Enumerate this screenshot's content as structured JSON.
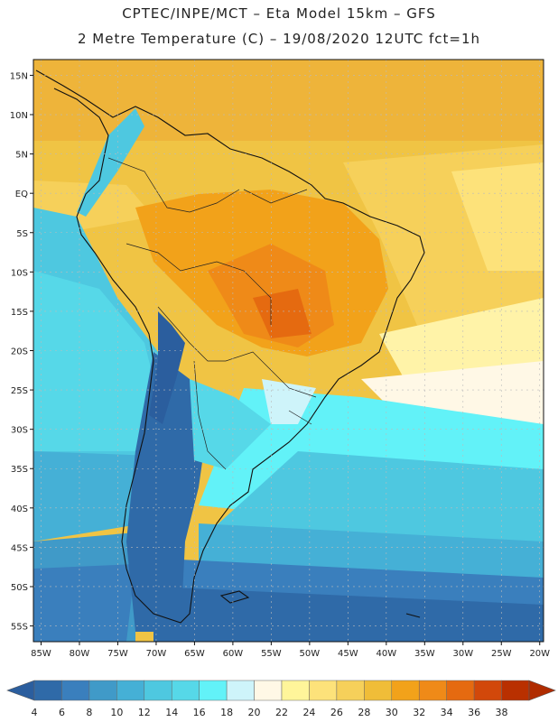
{
  "header": {
    "line1": "CPTEC/INPE/MCT –  Eta Model 15km – GFS",
    "line2": "2 Metre Temperature (C) – 19/08/2020 12UTC fct=1h"
  },
  "map": {
    "lon_labels": [
      "85W",
      "80W",
      "75W",
      "70W",
      "65W",
      "60W",
      "55W",
      "50W",
      "45W",
      "40W",
      "35W",
      "30W",
      "25W",
      "20W"
    ],
    "lat_labels": [
      "15N",
      "10N",
      "5N",
      "EQ",
      "5S",
      "10S",
      "15S",
      "20S",
      "25S",
      "30S",
      "35S",
      "40S",
      "45S",
      "50S",
      "55S"
    ],
    "lon_range": [
      -86,
      -19.5
    ],
    "lat_range": [
      17,
      -57
    ]
  },
  "colorbar": {
    "labels": [
      "4",
      "6",
      "8",
      "10",
      "12",
      "14",
      "16",
      "18",
      "20",
      "22",
      "24",
      "26",
      "28",
      "30",
      "32",
      "34",
      "36",
      "38"
    ],
    "colors": [
      "#2f6aa8",
      "#3a7fbd",
      "#409ac8",
      "#45b0d6",
      "#4ec8e0",
      "#56d8e8",
      "#62f2f8",
      "#cef4fa",
      "#fff8e6",
      "#fff59a",
      "#fde27a",
      "#f6d05a",
      "#f0bd38",
      "#f2a21a",
      "#ef8a18",
      "#e56a10",
      "#d2480a",
      "#b93000"
    ],
    "low_color": "#2b5e9e",
    "high_color": "#b02c00"
  }
}
